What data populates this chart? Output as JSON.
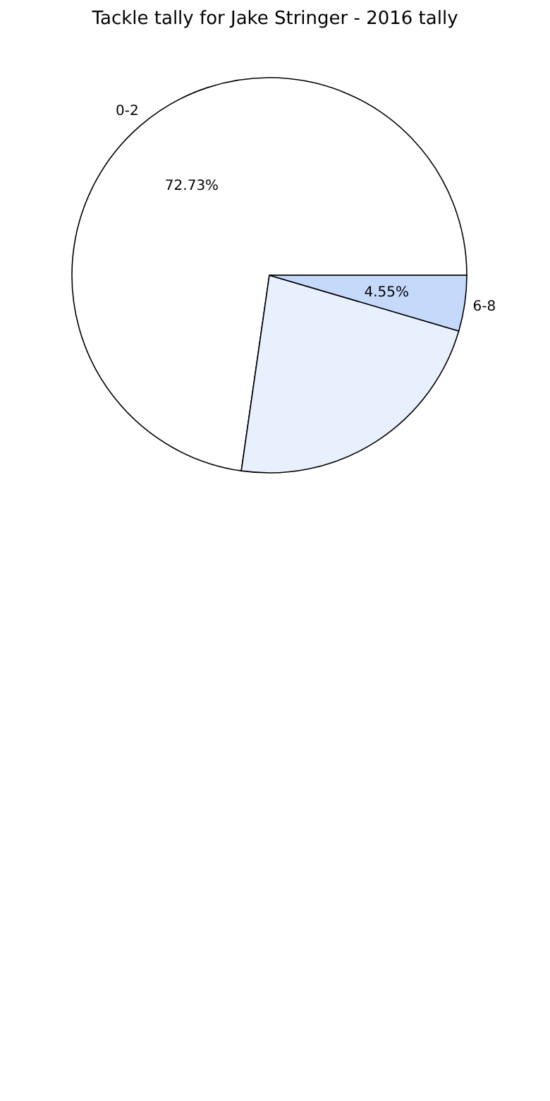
{
  "chart_data": {
    "type": "pie",
    "title": "Tackle tally for Jake Stringer - 2016 tally",
    "categories": [
      "0-2",
      null,
      "6-8"
    ],
    "values": [
      72.73,
      22.72,
      4.55
    ],
    "value_labels": [
      "72.73%",
      null,
      "4.55%"
    ],
    "colors": [
      "#ffffff",
      "#e8f0fe",
      "#c5d9fb"
    ],
    "legend": false
  }
}
